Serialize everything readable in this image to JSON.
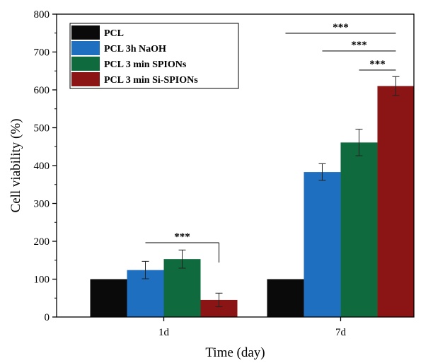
{
  "chart_data": {
    "type": "bar",
    "xlabel": "Time (day)",
    "ylabel": "Cell viability (%)",
    "ylim": [
      0,
      800
    ],
    "yticks": [
      0,
      100,
      200,
      300,
      400,
      500,
      600,
      700,
      800
    ],
    "categories": [
      "1d",
      "7d"
    ],
    "series": [
      {
        "name": "PCL",
        "color": "#0a0a0a",
        "values": [
          100,
          100
        ],
        "errors": [
          0,
          0
        ]
      },
      {
        "name": "PCL 3h NaOH",
        "color": "#1f6fc0",
        "values": [
          124,
          383
        ],
        "errors": [
          23,
          22
        ]
      },
      {
        "name": "PCL 3 min SPIONs",
        "color": "#0f6b3e",
        "values": [
          153,
          461
        ],
        "errors": [
          24,
          35
        ]
      },
      {
        "name": "PCL 3 min Si-SPIONs",
        "color": "#8b1414",
        "values": [
          45,
          610
        ],
        "errors": [
          18,
          25
        ]
      }
    ],
    "legend": {
      "placement": "top-left",
      "frame": true
    },
    "significance": [
      {
        "category": "1d",
        "from_series": 1,
        "to_series": 3,
        "label": "***"
      },
      {
        "category": "7d",
        "from_series": 0,
        "to_series": 3,
        "label": "***"
      },
      {
        "category": "7d",
        "from_series": 1,
        "to_series": 3,
        "label": "***"
      },
      {
        "category": "7d",
        "from_series": 2,
        "to_series": 3,
        "label": "***"
      }
    ]
  }
}
